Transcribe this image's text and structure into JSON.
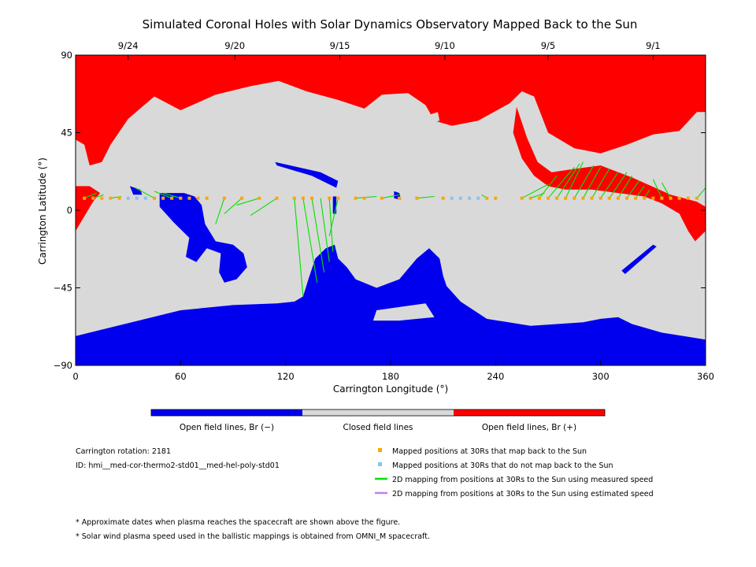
{
  "chart_data": {
    "type": "scatter",
    "title": "Simulated Coronal Holes with Solar Dynamics Observatory Mapped Back to the Sun",
    "xlabel": "Carrington Longitude (°)",
    "ylabel": "Carrington Latitude (°)",
    "xlim": [
      0,
      360
    ],
    "ylim": [
      -90,
      90
    ],
    "x_ticks": [
      "0",
      "60",
      "120",
      "180",
      "240",
      "300",
      "360"
    ],
    "y_ticks": [
      "90",
      "45",
      "0",
      "−45",
      "−90"
    ],
    "top_dates": [
      {
        "label": "9/24",
        "lon": 30
      },
      {
        "label": "9/20",
        "lon": 91
      },
      {
        "label": "9/15",
        "lon": 151
      },
      {
        "label": "9/10",
        "lon": 211
      },
      {
        "label": "9/5",
        "lon": 270
      },
      {
        "label": "9/1",
        "lon": 330
      }
    ],
    "colors": {
      "open_negative": "#0000ee",
      "closed": "#d9d9d9",
      "open_positive": "#ff0000",
      "mapped": "#ffa500",
      "not_mapped": "#87c3f5",
      "measured_speed": "#00e000",
      "estimated_speed": "#c080f0"
    },
    "series": [
      {
        "name": "Mapped positions at 30Rs that map back to the Sun",
        "points": [
          [
            5,
            7
          ],
          [
            10,
            7
          ],
          [
            15,
            7
          ],
          [
            20,
            7
          ],
          [
            25,
            7
          ],
          [
            45,
            7
          ],
          [
            50,
            7
          ],
          [
            55,
            7
          ],
          [
            60,
            7
          ],
          [
            65,
            7
          ],
          [
            70,
            7
          ],
          [
            75,
            7
          ],
          [
            85,
            7
          ],
          [
            95,
            7
          ],
          [
            105,
            7
          ],
          [
            115,
            7
          ],
          [
            125,
            7
          ],
          [
            130,
            7
          ],
          [
            135,
            7
          ],
          [
            145,
            7
          ],
          [
            150,
            7
          ],
          [
            160,
            7
          ],
          [
            165,
            7
          ],
          [
            175,
            7
          ],
          [
            185,
            7
          ],
          [
            195,
            7
          ],
          [
            210,
            7
          ],
          [
            235,
            7
          ],
          [
            240,
            7
          ],
          [
            255,
            7
          ],
          [
            260,
            7
          ],
          [
            265,
            7
          ],
          [
            270,
            7
          ],
          [
            275,
            7
          ],
          [
            280,
            7
          ],
          [
            285,
            7
          ],
          [
            290,
            7
          ],
          [
            295,
            7
          ],
          [
            300,
            7
          ],
          [
            305,
            7
          ],
          [
            310,
            7
          ],
          [
            315,
            7
          ],
          [
            320,
            7
          ],
          [
            325,
            7
          ],
          [
            330,
            7
          ],
          [
            335,
            7
          ],
          [
            340,
            7
          ],
          [
            345,
            7
          ],
          [
            350,
            7
          ],
          [
            355,
            7
          ]
        ]
      },
      {
        "name": "Mapped positions at 30Rs that do not map back to the Sun",
        "points": [
          [
            30,
            7
          ],
          [
            35,
            7
          ],
          [
            40,
            7
          ],
          [
            215,
            7
          ],
          [
            220,
            7
          ],
          [
            225,
            7
          ],
          [
            230,
            7
          ]
        ]
      },
      {
        "name": "2D mapping from positions at 30Rs to the Sun using measured speed",
        "lines": [
          [
            [
              5,
              7
            ],
            [
              12,
              10
            ]
          ],
          [
            [
              10,
              7
            ],
            [
              16,
              9
            ]
          ],
          [
            [
              20,
              7
            ],
            [
              26,
              8
            ]
          ],
          [
            [
              45,
              7
            ],
            [
              34,
              13
            ]
          ],
          [
            [
              55,
              7
            ],
            [
              45,
              11
            ]
          ],
          [
            [
              60,
              7
            ],
            [
              50,
              10
            ]
          ],
          [
            [
              85,
              7
            ],
            [
              80,
              -8
            ]
          ],
          [
            [
              95,
              7
            ],
            [
              85,
              -2
            ]
          ],
          [
            [
              105,
              7
            ],
            [
              92,
              3
            ]
          ],
          [
            [
              115,
              7
            ],
            [
              100,
              -3
            ]
          ],
          [
            [
              125,
              7
            ],
            [
              130,
              -50
            ]
          ],
          [
            [
              130,
              7
            ],
            [
              138,
              -42
            ]
          ],
          [
            [
              135,
              7
            ],
            [
              142,
              -36
            ]
          ],
          [
            [
              140,
              7
            ],
            [
              145,
              -30
            ]
          ],
          [
            [
              145,
              7
            ],
            [
              147,
              -24
            ]
          ],
          [
            [
              150,
              7
            ],
            [
              145,
              -15
            ]
          ],
          [
            [
              160,
              7
            ],
            [
              172,
              8
            ]
          ],
          [
            [
              175,
              7
            ],
            [
              185,
              9
            ]
          ],
          [
            [
              195,
              7
            ],
            [
              205,
              8
            ]
          ],
          [
            [
              235,
              7
            ],
            [
              232,
              9
            ]
          ],
          [
            [
              255,
              7
            ],
            [
              270,
              15
            ]
          ],
          [
            [
              260,
              7
            ],
            [
              268,
              10
            ]
          ],
          [
            [
              265,
              7
            ],
            [
              275,
              20
            ]
          ],
          [
            [
              270,
              7
            ],
            [
              285,
              25
            ]
          ],
          [
            [
              275,
              7
            ],
            [
              288,
              27
            ]
          ],
          [
            [
              280,
              7
            ],
            [
              290,
              28
            ]
          ],
          [
            [
              285,
              7
            ],
            [
              296,
              26
            ]
          ],
          [
            [
              290,
              7
            ],
            [
              300,
              25
            ]
          ],
          [
            [
              295,
              7
            ],
            [
              305,
              24
            ]
          ],
          [
            [
              300,
              7
            ],
            [
              310,
              22
            ]
          ],
          [
            [
              305,
              7
            ],
            [
              315,
              22
            ]
          ],
          [
            [
              310,
              7
            ],
            [
              318,
              20
            ]
          ],
          [
            [
              315,
              7
            ],
            [
              322,
              17
            ]
          ],
          [
            [
              320,
              7
            ],
            [
              325,
              14
            ]
          ],
          [
            [
              325,
              7
            ],
            [
              328,
              12
            ]
          ],
          [
            [
              335,
              7
            ],
            [
              330,
              18
            ]
          ],
          [
            [
              340,
              7
            ],
            [
              335,
              16
            ]
          ],
          [
            [
              355,
              7
            ],
            [
              360,
              13
            ]
          ]
        ]
      },
      {
        "name": "2D mapping from positions at 30Rs to the Sun using estimated speed",
        "lines": []
      }
    ],
    "colorbar": [
      {
        "label": "Open field lines, Br (−)",
        "color": "#0000ee"
      },
      {
        "label": "Closed field lines",
        "color": "#d9d9d9"
      },
      {
        "label": "Open field lines, Br (+)",
        "color": "#ff0000"
      }
    ],
    "legend_position": "bottom-right"
  },
  "info": {
    "rotation": "Carrington rotation: 2181",
    "id": "ID: hmi__med-cor-thermo2-std01__med-hel-poly-std01"
  },
  "notes": [
    "* Approximate dates when plasma reaches the spacecraft are shown above the figure.",
    "* Solar wind plasma speed used in the ballistic mappings is obtained from OMNI_M spacecraft."
  ]
}
